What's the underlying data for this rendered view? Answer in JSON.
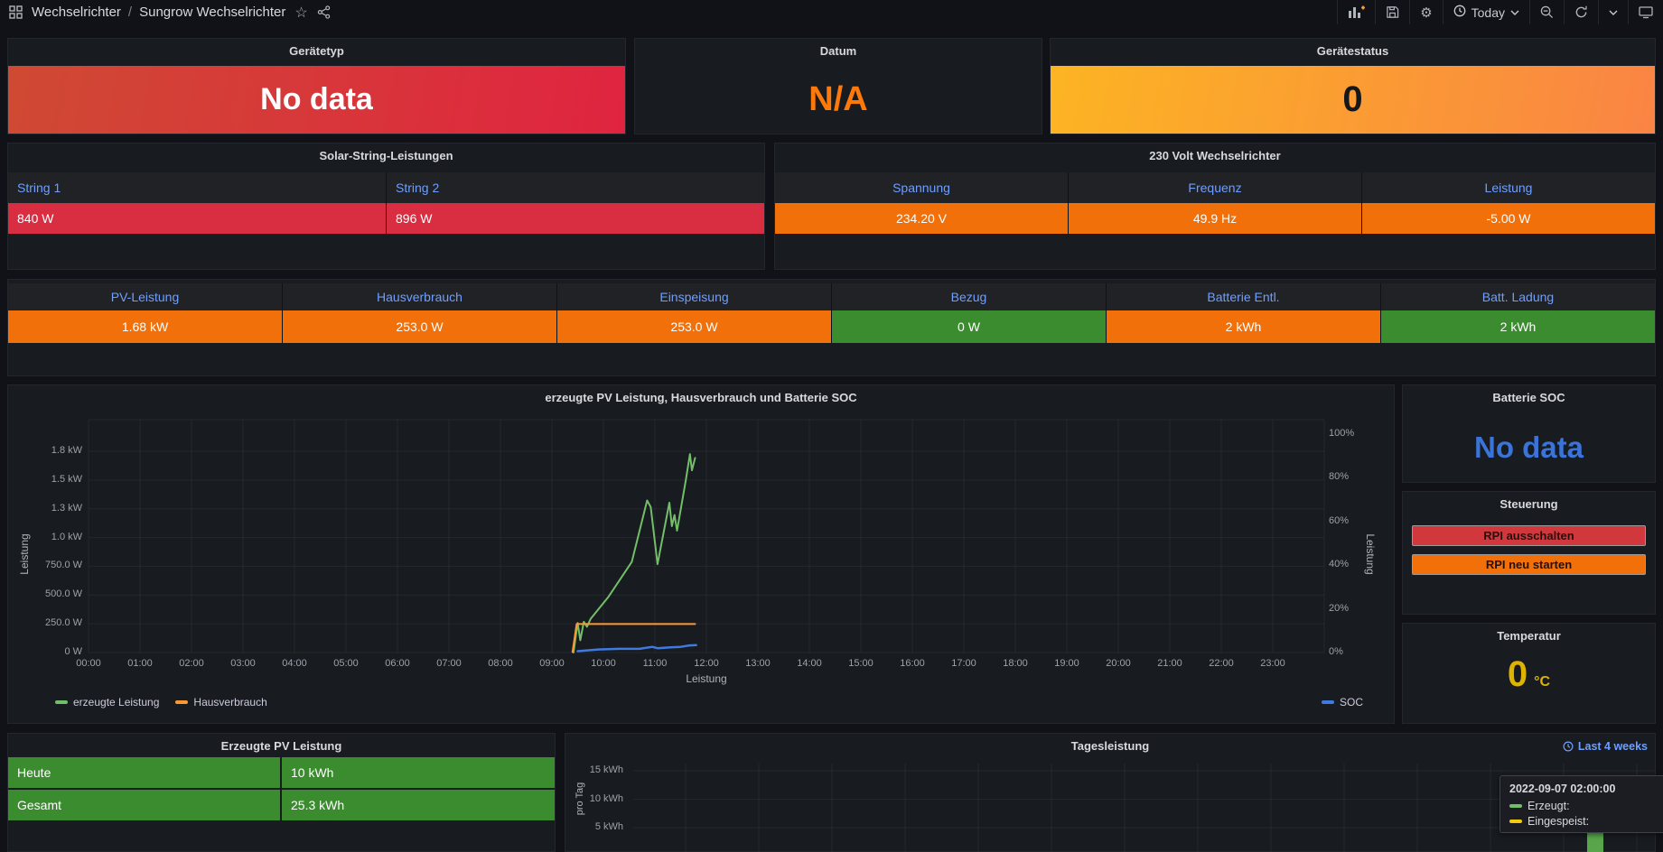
{
  "palette": {
    "page_bg": "#111217",
    "panel_bg": "#181b1f",
    "header_blue": "#6e9fff",
    "red": "#d92e41",
    "orange": "#f2700a",
    "green": "#3b8c2f",
    "value_blue": "#3a74d8",
    "value_orange": "#ff780a",
    "temp_yellow": "#deb400",
    "series_green": "#73bf69",
    "series_orange": "#ff9830",
    "series_blue": "#3f7ae0",
    "bar_green": "#57a64b",
    "eingespeist_yellow": "#f2cc0c"
  },
  "nav": {
    "breadcrumb_root": "Wechselrichter",
    "breadcrumb_sep": "/",
    "breadcrumb_current": "Sungrow Wechselrichter",
    "time_range_label": "Today",
    "icons": [
      "dashboards-grid",
      "star",
      "share",
      "add-panel",
      "save",
      "settings-gear",
      "clock",
      "chevron-down",
      "zoom-out",
      "refresh",
      "monitor"
    ]
  },
  "geraetetyp": {
    "title": "Gerätetyp",
    "value": "No data"
  },
  "datum": {
    "title": "Datum",
    "value": "N/A"
  },
  "geraetestatus": {
    "title": "Gerätestatus",
    "value": "0"
  },
  "solar_table": {
    "title": "Solar-String-Leistungen",
    "headers": [
      "String 1",
      "String 2"
    ],
    "values": [
      "840 W",
      "896 W"
    ]
  },
  "inverter_table": {
    "title": "230 Volt Wechselrichter",
    "headers": [
      "Spannung",
      "Frequenz",
      "Leistung"
    ],
    "values": [
      "234.20 V",
      "49.9 Hz",
      "-5.00 W"
    ]
  },
  "stats": {
    "columns": [
      {
        "label": "PV-Leistung",
        "value": "1.68 kW",
        "color": "orange"
      },
      {
        "label": "Hausverbrauch",
        "value": "253.0 W",
        "color": "orange"
      },
      {
        "label": "Einspeisung",
        "value": "253.0 W",
        "color": "orange"
      },
      {
        "label": "Bezug",
        "value": "0 W",
        "color": "green"
      },
      {
        "label": "Batterie Entl.",
        "value": "2 kWh",
        "color": "orange"
      },
      {
        "label": "Batt. Ladung",
        "value": "2 kWh",
        "color": "green"
      }
    ]
  },
  "chart_data": [
    {
      "type": "line",
      "title": "erzeugte PV Leistung, Hausverbrauch und Batterie SOC",
      "xlabel": "Leistung",
      "ylabel_left": "Leistung",
      "ylabel_right": "Leistung",
      "x_ticks": [
        "00:00",
        "01:00",
        "02:00",
        "03:00",
        "04:00",
        "05:00",
        "06:00",
        "07:00",
        "08:00",
        "09:00",
        "10:00",
        "11:00",
        "12:00",
        "13:00",
        "14:00",
        "15:00",
        "16:00",
        "17:00",
        "18:00",
        "19:00",
        "20:00",
        "21:00",
        "22:00",
        "23:00"
      ],
      "y_ticks_left": [
        "1.8 kW",
        "1.5 kW",
        "1.3 kW",
        "1.0 kW",
        "750.0 W",
        "500.0 W",
        "250.0 W",
        "0 W"
      ],
      "y_ticks_right": [
        "100%",
        "80%",
        "60%",
        "40%",
        "20%",
        "0%"
      ],
      "ylim_left_watts": [
        0,
        1800
      ],
      "ylim_right_pct": [
        0,
        100
      ],
      "legend_left": [
        "erzeugte Leistung",
        "Hausverbrauch"
      ],
      "legend_right": [
        "SOC"
      ],
      "series": [
        {
          "name": "erzeugte Leistung",
          "axis": "left",
          "unit": "W",
          "color": "#73bf69",
          "width": 2,
          "points": [
            [
              9.42,
              0
            ],
            [
              9.5,
              265
            ],
            [
              9.55,
              110
            ],
            [
              9.62,
              275
            ],
            [
              9.68,
              230
            ],
            [
              9.75,
              300
            ],
            [
              10.1,
              500
            ],
            [
              10.55,
              810
            ],
            [
              10.85,
              1360
            ],
            [
              10.92,
              1300
            ],
            [
              11.05,
              790
            ],
            [
              11.28,
              1340
            ],
            [
              11.33,
              1130
            ],
            [
              11.38,
              1230
            ],
            [
              11.43,
              1090
            ],
            [
              11.6,
              1540
            ],
            [
              11.68,
              1775
            ],
            [
              11.72,
              1630
            ],
            [
              11.78,
              1740
            ]
          ]
        },
        {
          "name": "Hausverbrauch",
          "axis": "left",
          "unit": "W",
          "color": "#ff9830",
          "width": 2,
          "points": [
            [
              9.4,
              5
            ],
            [
              9.48,
              255
            ],
            [
              11.78,
              255
            ]
          ]
        },
        {
          "name": "SOC",
          "axis": "right",
          "unit": "%",
          "color": "#3f7ae0",
          "width": 2.5,
          "points": [
            [
              9.5,
              0.6
            ],
            [
              9.9,
              1.4
            ],
            [
              10.3,
              1.7
            ],
            [
              10.7,
              1.7
            ],
            [
              10.95,
              2.6
            ],
            [
              11.05,
              2.0
            ],
            [
              11.3,
              2.4
            ],
            [
              11.5,
              2.6
            ],
            [
              11.65,
              3.2
            ],
            [
              11.8,
              3.4
            ]
          ]
        }
      ]
    },
    {
      "type": "bar",
      "title": "Tagesleistung",
      "ylabel": "pro Tag",
      "y_ticks": [
        "15 kWh",
        "10 kWh",
        "5 kWh"
      ],
      "time_range_link": "Last 4 weeks",
      "bars": [
        {
          "x": "2022-09-07",
          "value_kwh": 13,
          "color": "#57a64b"
        }
      ],
      "tooltip": {
        "timestamp": "2022-09-07 02:00:00",
        "rows": [
          {
            "label": "Erzeugt:",
            "color": "#73bf69"
          },
          {
            "label": "Eingespeist:",
            "color": "#f2cc0c"
          }
        ]
      }
    }
  ],
  "battery_soc": {
    "title": "Batterie SOC",
    "value": "No data"
  },
  "steuerung": {
    "title": "Steuerung",
    "buttons": [
      {
        "label": "RPI ausschalten",
        "color": "red"
      },
      {
        "label": "RPI neu starten",
        "color": "orange"
      }
    ]
  },
  "temperatur": {
    "title": "Temperatur",
    "value": "0",
    "unit": "°C"
  },
  "pv_table": {
    "title": "Erzeugte PV Leistung",
    "rows": [
      {
        "label": "Heute",
        "value": "10 kWh"
      },
      {
        "label": "Gesamt",
        "value": "25.3 kWh"
      }
    ]
  }
}
